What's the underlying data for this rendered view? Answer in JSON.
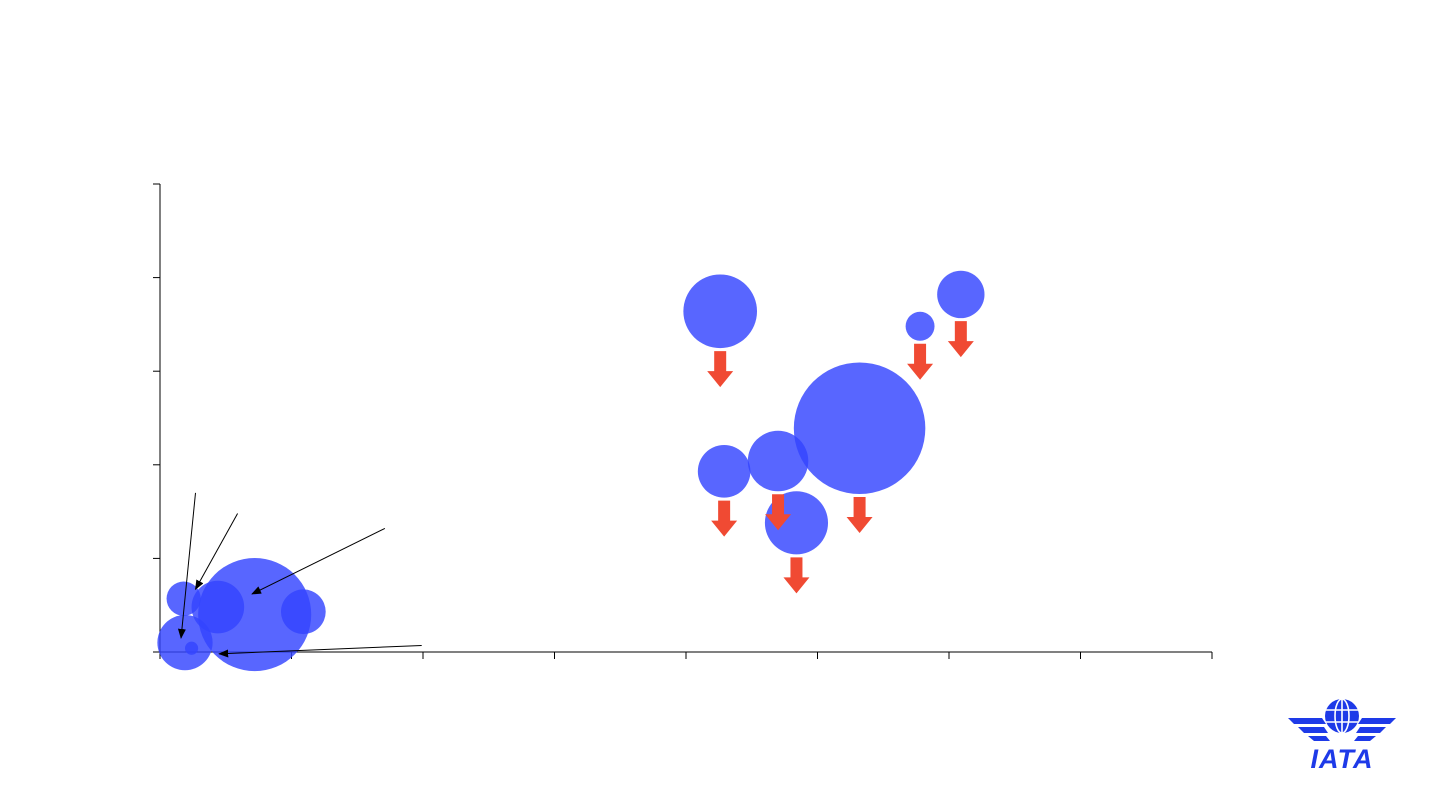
{
  "chart_data": {
    "type": "scatter",
    "title": "",
    "xlabel": "",
    "ylabel": "",
    "xlim": [
      0,
      8
    ],
    "ylim": [
      0,
      5
    ],
    "x_ticks": [
      0,
      1,
      2,
      3,
      4,
      5,
      6,
      7,
      8
    ],
    "y_ticks": [
      0,
      1,
      2,
      3,
      4,
      5
    ],
    "grid": false,
    "legend": "none",
    "bubble_color": "#3344ff",
    "arrow_color": "#f04a33",
    "series": [
      {
        "points": [
          {
            "x": 0.18,
            "y": 0.57,
            "size": 0.13,
            "arrow": false
          },
          {
            "x": 0.44,
            "y": 0.48,
            "size": 0.2,
            "arrow": false
          },
          {
            "x": 0.72,
            "y": 0.4,
            "size": 0.43,
            "arrow": false
          },
          {
            "x": 1.09,
            "y": 0.43,
            "size": 0.17,
            "arrow": false
          },
          {
            "x": 0.19,
            "y": 0.1,
            "size": 0.21,
            "arrow": false
          },
          {
            "x": 0.24,
            "y": 0.04,
            "size": 0.05,
            "arrow": false
          },
          {
            "x": 4.26,
            "y": 3.64,
            "size": 0.28,
            "arrow": true
          },
          {
            "x": 4.29,
            "y": 1.93,
            "size": 0.2,
            "arrow": true
          },
          {
            "x": 4.7,
            "y": 2.04,
            "size": 0.23,
            "arrow": true
          },
          {
            "x": 4.84,
            "y": 1.38,
            "size": 0.24,
            "arrow": true
          },
          {
            "x": 5.32,
            "y": 2.39,
            "size": 0.5,
            "arrow": true
          },
          {
            "x": 5.78,
            "y": 3.48,
            "size": 0.11,
            "arrow": true
          },
          {
            "x": 6.09,
            "y": 3.82,
            "size": 0.18,
            "arrow": true
          }
        ]
      }
    ],
    "annotations": [
      {
        "from": [
          0.27,
          1.7
        ],
        "to": [
          0.16,
          0.15
        ]
      },
      {
        "from": [
          0.59,
          1.48
        ],
        "to": [
          0.27,
          0.67
        ]
      },
      {
        "from": [
          1.71,
          1.32
        ],
        "to": [
          0.7,
          0.62
        ]
      },
      {
        "from": [
          1.99,
          0.07
        ],
        "to": [
          0.45,
          -0.02
        ]
      }
    ]
  },
  "logo": {
    "text": "IATA",
    "color": "#1e3ae8"
  }
}
